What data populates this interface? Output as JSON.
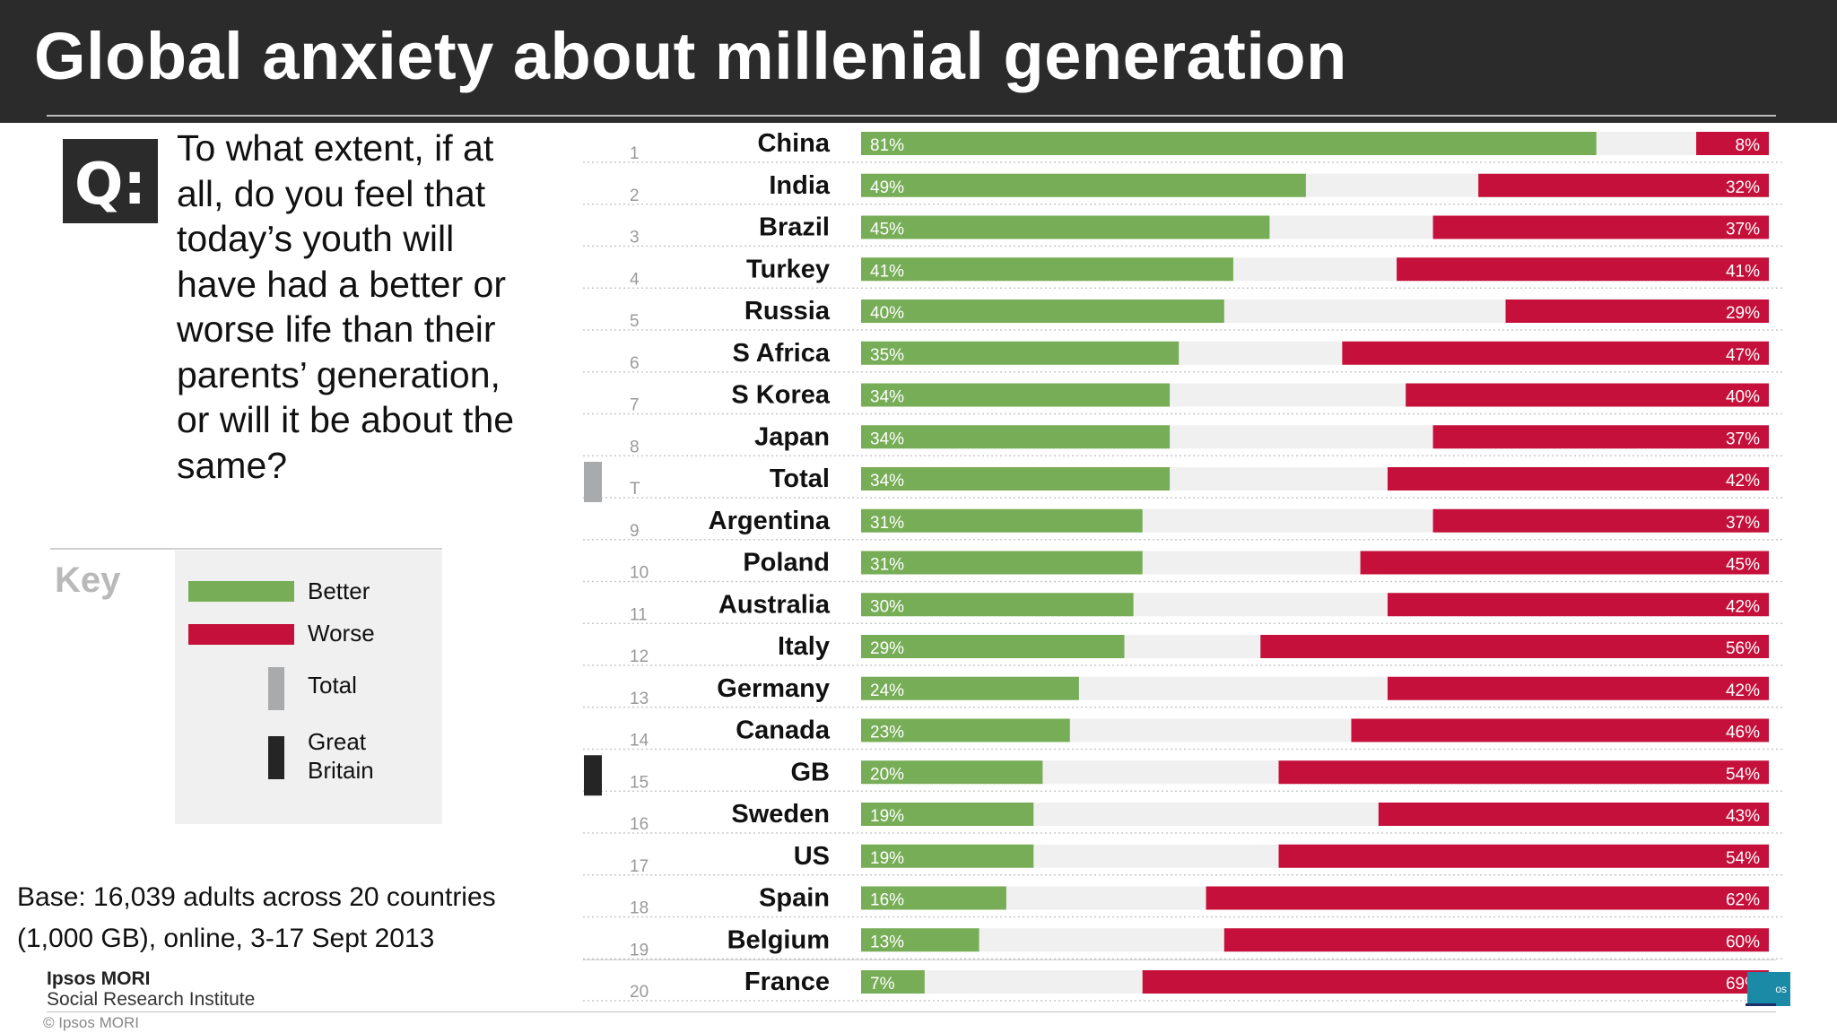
{
  "title": "Global anxiety about millenial generation",
  "question": {
    "badge": "Q:",
    "text": "To what extent, if at all, do you feel that today’s youth will have had a better or worse life than their parents’ generation, or will it be about the same?"
  },
  "key": {
    "title": "Key",
    "items": [
      {
        "label": "Better",
        "color": "#77ad57"
      },
      {
        "label": "Worse",
        "color": "#c4103a"
      },
      {
        "label": "Total",
        "color": "#a9aaac"
      },
      {
        "label": "Great Britain",
        "color": "#252525"
      }
    ]
  },
  "base_note": "Base: 16,039 adults across 20 countries (1,000 GB), online, 3-17 Sept 2013",
  "footer": {
    "brand": "Ipsos MORI",
    "subtitle": "Social Research Institute",
    "copyright": "© Ipsos MORI",
    "logo_text": "os"
  },
  "colors": {
    "better": "#77ad57",
    "worse": "#c4103a",
    "total_marker": "#a9aaac",
    "gb_marker": "#252525",
    "row_band": "#f0f0f0",
    "rank_text": "#999999"
  },
  "chart_data": {
    "type": "bar",
    "orientation": "horizontal-diverging",
    "title": "Global anxiety about millenial generation",
    "x_range": [
      0,
      100
    ],
    "series": [
      {
        "name": "Better",
        "values": [
          81,
          49,
          45,
          41,
          40,
          35,
          34,
          34,
          34,
          31,
          31,
          30,
          29,
          24,
          23,
          20,
          19,
          19,
          16,
          13,
          7
        ]
      },
      {
        "name": "Worse",
        "values": [
          8,
          32,
          37,
          41,
          29,
          47,
          40,
          37,
          42,
          37,
          45,
          42,
          56,
          42,
          46,
          54,
          43,
          54,
          62,
          60,
          69
        ]
      }
    ],
    "categories": [
      "China",
      "India",
      "Brazil",
      "Turkey",
      "Russia",
      "S Africa",
      "S Korea",
      "Japan",
      "Total",
      "Argentina",
      "Poland",
      "Australia",
      "Italy",
      "Germany",
      "Canada",
      "GB",
      "Sweden",
      "US",
      "Spain",
      "Belgium",
      "France"
    ],
    "ranks": [
      "1",
      "2",
      "3",
      "4",
      "5",
      "6",
      "7",
      "8",
      "T",
      "9",
      "10",
      "11",
      "12",
      "13",
      "14",
      "15",
      "16",
      "17",
      "18",
      "19",
      "20"
    ],
    "markers": [
      "",
      "",
      "",
      "",
      "",
      "",
      "",
      "",
      "total",
      "",
      "",
      "",
      "",
      "",
      "",
      "gb",
      "",
      "",
      "",
      "",
      ""
    ],
    "value_format": "{v}%"
  }
}
